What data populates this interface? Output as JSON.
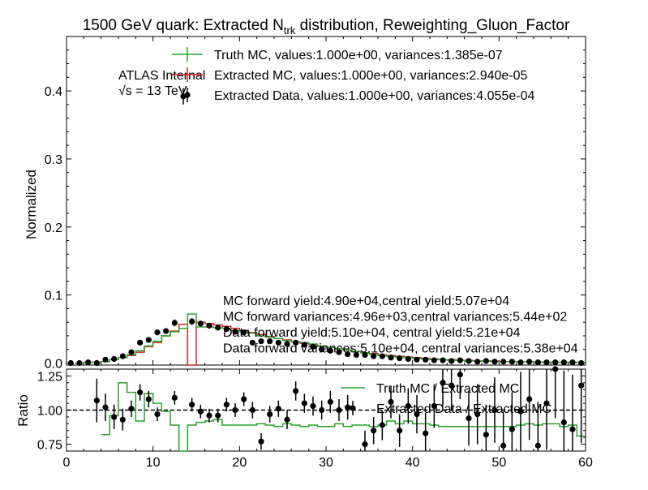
{
  "figure": {
    "title_main": "1500 GeV quark: Extracted N",
    "title_sub": "trk",
    "title_rest": " distribution, Reweighting_Gluon_Factor"
  },
  "atlas": {
    "label": "ATLAS Internal",
    "energy_sqrt": "√s",
    "energy_rest": " =  13 TeV"
  },
  "legend_top": [
    {
      "text": "Truth MC, values:1.000e+00, variances:1.385e-07",
      "color": "#2ca02c",
      "style": "line-cross"
    },
    {
      "text": "Extracted MC, values:1.000e+00, variances:2.940e-05",
      "color": "#d62728",
      "style": "line-cross"
    },
    {
      "text": "Extracted Data, values:1.000e+00, variances:4.055e-04",
      "color": "#000000",
      "style": "point"
    }
  ],
  "annotations": [
    "MC forward yield:4.90e+04,central yield:5.07e+04",
    "MC forward variances:4.96e+03,central variances:5.44e+02",
    "Data forward yield:5.10e+04, central yield:5.21e+04",
    "Data forward variances:5.10e+04, central variances:5.38e+04"
  ],
  "legend_bottom": [
    {
      "text": "Truth MC / Extracted MC",
      "color": "#2ca02c",
      "style": "line"
    },
    {
      "text": "Extracted Data / Extracted MC",
      "color": "#000000",
      "style": "point"
    }
  ],
  "chart_data": [
    {
      "type": "line",
      "panel": "main",
      "ylabel": "Normalized",
      "xlim": [
        0,
        60
      ],
      "ylim": [
        -0.003,
        0.48
      ],
      "yticks": [
        "0.0",
        "0.1",
        "0.2",
        "0.3",
        "0.4"
      ],
      "ytick_values": [
        0,
        0.1,
        0.2,
        0.3,
        0.4
      ],
      "bin_edges": [
        1,
        2,
        3,
        4,
        5,
        6,
        7,
        8,
        9,
        10,
        11,
        12,
        13,
        14,
        15,
        16,
        17,
        18,
        19,
        20,
        21,
        22,
        23,
        24,
        25,
        26,
        27,
        28,
        29,
        30,
        31,
        32,
        33,
        34,
        35,
        36,
        37,
        38,
        39,
        40,
        41,
        42,
        43,
        44,
        45,
        46,
        47,
        48,
        49,
        50,
        51,
        52,
        53,
        54,
        55,
        56,
        57,
        58,
        59,
        60
      ],
      "series": [
        {
          "name": "Truth MC",
          "color": "#2ca02c",
          "values": [
            0.0,
            0.001,
            0.001,
            0.002,
            0.005,
            0.008,
            0.012,
            0.018,
            0.025,
            0.032,
            0.04,
            0.046,
            0.051,
            0.072,
            0.053,
            0.053,
            0.052,
            0.051,
            0.048,
            0.046,
            0.044,
            0.04,
            0.038,
            0.036,
            0.033,
            0.031,
            0.03,
            0.028,
            0.025,
            0.023,
            0.021,
            0.019,
            0.017,
            0.015,
            0.013,
            0.011,
            0.01,
            0.009,
            0.008,
            0.007,
            0.006,
            0.005,
            0.005,
            0.004,
            0.004,
            0.003,
            0.003,
            0.003,
            0.002,
            0.002,
            0.002,
            0.002,
            0.002,
            0.001,
            0.001,
            0.001,
            0.001,
            0.001,
            0.001
          ]
        },
        {
          "name": "Extracted MC",
          "color": "#d62728",
          "values": [
            0.0,
            0.001,
            0.001,
            0.002,
            0.005,
            0.008,
            0.011,
            0.016,
            0.024,
            0.03,
            0.04,
            0.047,
            0.057,
            -0.003,
            0.06,
            0.058,
            0.056,
            0.054,
            0.051,
            0.048,
            0.045,
            0.042,
            0.039,
            0.036,
            0.034,
            0.031,
            0.029,
            0.027,
            0.025,
            0.023,
            0.021,
            0.019,
            0.017,
            0.015,
            0.014,
            0.012,
            0.011,
            0.01,
            0.009,
            0.008,
            0.007,
            0.006,
            0.005,
            0.005,
            0.004,
            0.004,
            0.003,
            0.003,
            0.003,
            0.002,
            0.002,
            0.002,
            0.002,
            0.001,
            0.001,
            0.001,
            0.001,
            0.001,
            0.001
          ]
        },
        {
          "name": "Extracted Data",
          "color": "#000000",
          "points_x": [
            0.5,
            1.5,
            2.5,
            3.5,
            4.5,
            5.5,
            6.5,
            7.5,
            8.5,
            9.5,
            10.5,
            11.5,
            12.5,
            13.5,
            14.5,
            15.5,
            16.5,
            17.5,
            18.5,
            19.5,
            20.5,
            21.5,
            22.5,
            23.5,
            24.5,
            25.5,
            26.5,
            27.5,
            28.5,
            29.5,
            30.5,
            31.5,
            32.5,
            33.5,
            34.5,
            35.5,
            36.5,
            37.5,
            38.5,
            39.5,
            40.5,
            41.5,
            42.5,
            43.5,
            44.5,
            45.5,
            46.5,
            47.5,
            48.5,
            49.5,
            50.5,
            51.5,
            52.5,
            53.5,
            54.5,
            55.5,
            56.5,
            57.5,
            58.5,
            59.5
          ],
          "points_y": [
            0.0,
            0.0,
            0.001,
            0.0,
            0.005,
            0.006,
            0.01,
            0.016,
            0.03,
            0.034,
            0.045,
            0.047,
            0.059,
            0.392,
            0.061,
            0.058,
            0.055,
            0.052,
            0.05,
            0.046,
            0.045,
            0.03,
            0.032,
            0.032,
            0.03,
            0.028,
            0.03,
            0.027,
            0.024,
            0.02,
            0.018,
            0.016,
            0.013,
            0.012,
            0.012,
            0.01,
            0.01,
            0.008,
            0.007,
            0.006,
            0.005,
            0.005,
            0.004,
            0.004,
            0.003,
            0.004,
            0.003,
            0.002,
            0.003,
            0.002,
            0.002,
            0.002,
            0.001,
            0.002,
            0.001,
            0.001,
            0.001,
            0.001,
            0.001,
            0.0
          ],
          "errors": [
            0.001,
            0.001,
            0.001,
            0.001,
            0.002,
            0.002,
            0.002,
            0.003,
            0.004,
            0.004,
            0.004,
            0.004,
            0.005,
            0.012,
            0.005,
            0.004,
            0.004,
            0.004,
            0.004,
            0.004,
            0.004,
            0.003,
            0.003,
            0.003,
            0.003,
            0.003,
            0.003,
            0.003,
            0.002,
            0.002,
            0.002,
            0.002,
            0.002,
            0.002,
            0.002,
            0.002,
            0.002,
            0.001,
            0.001,
            0.001,
            0.001,
            0.001,
            0.001,
            0.001,
            0.001,
            0.001,
            0.001,
            0.001,
            0.001,
            0.001,
            0.001,
            0.001,
            0.001,
            0.001,
            0.001,
            0.001,
            0.001,
            0.001,
            0.001,
            0.001
          ]
        }
      ]
    },
    {
      "type": "line",
      "panel": "ratio",
      "ylabel": "Ratio",
      "xlabel": "",
      "xlim": [
        0,
        60
      ],
      "ylim": [
        0.7,
        1.3
      ],
      "yticks": [
        "0.75",
        "1.00",
        "1.25"
      ],
      "ytick_values": [
        0.75,
        1.0,
        1.25
      ],
      "xticks": [
        "0",
        "10",
        "20",
        "30",
        "40",
        "50",
        "60"
      ],
      "xtick_values": [
        0,
        10,
        20,
        30,
        40,
        50,
        60
      ],
      "reference_line": 1.0,
      "series": [
        {
          "name": "Truth MC / Extracted MC",
          "color": "#2ca02c",
          "bin_edges": [
            4,
            5,
            6,
            7,
            8,
            9,
            10,
            11,
            12,
            13,
            14,
            15,
            16,
            17,
            18,
            19,
            20,
            21,
            22,
            23,
            24,
            25,
            26,
            27,
            28,
            29,
            30,
            31,
            32,
            33,
            34,
            35,
            36,
            37,
            38,
            39,
            40,
            41,
            42,
            43,
            44,
            45,
            46,
            47,
            48,
            49,
            50,
            51,
            52,
            53,
            54,
            55,
            56,
            57,
            58,
            59,
            60
          ],
          "values": [
            0.82,
            0.96,
            1.2,
            1.13,
            0.92,
            1.12,
            1.05,
            0.99,
            0.89,
            0.7,
            0.89,
            0.91,
            0.92,
            0.93,
            0.89,
            0.89,
            0.89,
            0.89,
            0.9,
            0.89,
            0.88,
            0.9,
            0.89,
            0.88,
            0.89,
            0.88,
            0.88,
            0.9,
            0.88,
            0.89,
            0.89,
            0.88,
            0.89,
            0.92,
            0.9,
            0.92,
            0.9,
            0.9,
            0.89,
            0.88,
            0.88,
            0.88,
            0.88,
            0.88,
            0.88,
            0.88,
            0.88,
            0.88,
            0.89,
            0.9,
            0.89,
            0.9,
            0.9,
            0.88,
            0.89,
            0.81
          ]
        },
        {
          "name": "Extracted Data / Extracted MC",
          "color": "#000000",
          "points_x": [
            3.5,
            4.5,
            5.5,
            6.5,
            7.5,
            8.5,
            9.5,
            10.5,
            12.5,
            14.5,
            15.5,
            16.5,
            17.5,
            18.5,
            19.5,
            20.5,
            21.5,
            22.5,
            23.5,
            24.5,
            25.5,
            26.5,
            27.5,
            28.5,
            29.5,
            30.5,
            31.5,
            32.5,
            34.5,
            35.5,
            36.5,
            37.5,
            38.5,
            39.5,
            40.5,
            41.5,
            42.5,
            43.5,
            44.5,
            45.5,
            46.5,
            47.5,
            48.5,
            49.5,
            50.5,
            51.5,
            52.5,
            53.5,
            54.5,
            55.5,
            56.5,
            57.5,
            58.5,
            59.5
          ],
          "points_y": [
            1.07,
            1.02,
            0.95,
            0.93,
            1.01,
            1.13,
            1.08,
            0.97,
            1.09,
            1.04,
            0.99,
            0.96,
            0.96,
            1.04,
            1.0,
            1.08,
            1.0,
            0.77,
            0.97,
            1.01,
            0.93,
            1.14,
            1.05,
            1.03,
            1.0,
            1.06,
            1.0,
            1.02,
            0.75,
            0.85,
            0.89,
            1.06,
            0.85,
            1.03,
            0.97,
            0.83,
            1.03,
            1.2,
            1.18,
            1.26,
            0.94,
            0.97,
            0.82,
            1.0,
            0.74,
            0.86,
            0.99,
            1.08,
            0.74,
            1.05,
            1.3,
            0.91,
            0.86,
            1.18
          ],
          "errors": [
            0.16,
            0.1,
            0.09,
            0.08,
            0.06,
            0.06,
            0.06,
            0.05,
            0.05,
            0.05,
            0.05,
            0.05,
            0.05,
            0.05,
            0.05,
            0.05,
            0.06,
            0.06,
            0.06,
            0.06,
            0.07,
            0.07,
            0.07,
            0.07,
            0.07,
            0.08,
            0.08,
            0.09,
            0.1,
            0.1,
            0.11,
            0.12,
            0.12,
            0.13,
            0.14,
            0.15,
            0.16,
            0.17,
            0.18,
            0.18,
            0.2,
            0.22,
            0.22,
            0.24,
            0.25,
            0.27,
            0.29,
            0.3,
            0.32,
            0.34,
            0.36,
            0.38,
            0.4,
            0.42
          ]
        }
      ]
    }
  ]
}
